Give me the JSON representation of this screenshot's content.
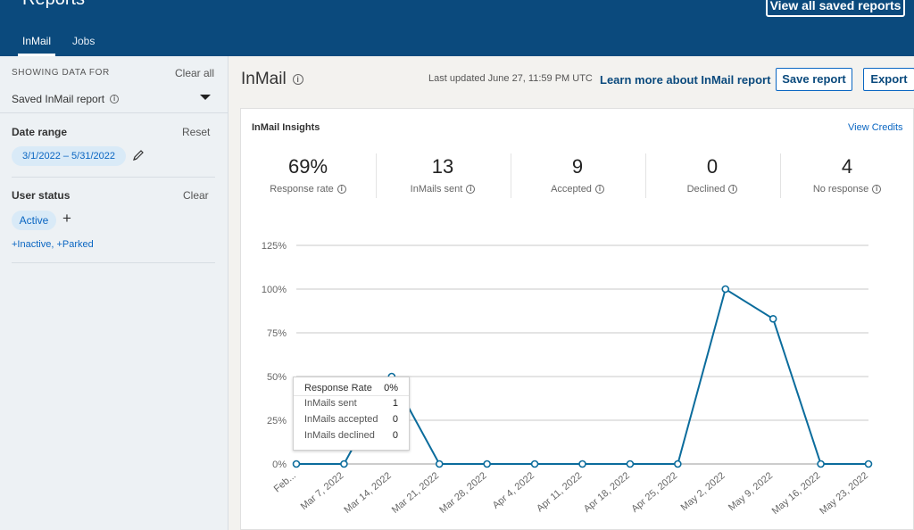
{
  "app": {
    "title": "Reports",
    "view_saved_label": "View all saved reports",
    "tabs": [
      {
        "label": "InMail",
        "active": true
      },
      {
        "label": "Jobs",
        "active": false
      }
    ]
  },
  "sidebar": {
    "section_title": "SHOWING DATA FOR",
    "clear_all": "Clear all",
    "saved_report_label": "Saved InMail report",
    "date_range_label": "Date range",
    "reset_label": "Reset",
    "date_range_value": "3/1/2022 – 5/31/2022",
    "user_status_label": "User status",
    "clear_label": "Clear",
    "active_chip": "Active",
    "add_status": "+",
    "more_status": "+Inactive, +Parked"
  },
  "header": {
    "title": "InMail",
    "updated": "Last updated June 27, 11:59 PM UTC",
    "learn_more": "Learn more about InMail report",
    "save_report": "Save report",
    "export": "Export"
  },
  "insights": {
    "title": "InMail Insights",
    "view_credits": "View Credits",
    "stats": [
      {
        "value": "69%",
        "label": "Response rate"
      },
      {
        "value": "13",
        "label": "InMails sent"
      },
      {
        "value": "9",
        "label": "Accepted"
      },
      {
        "value": "0",
        "label": "Declined"
      },
      {
        "value": "4",
        "label": "No response"
      }
    ]
  },
  "tooltip": {
    "rows": [
      {
        "label": "Response Rate",
        "value": "0%"
      },
      {
        "label": "InMails sent",
        "value": "1"
      },
      {
        "label": "InMails accepted",
        "value": "0"
      },
      {
        "label": "InMails declined",
        "value": "0"
      }
    ]
  },
  "chart_data": {
    "type": "line",
    "x": [
      "Feb...",
      "Mar 7, 2022",
      "Mar 14, 2022",
      "Mar 21, 2022",
      "Mar 28, 2022",
      "Apr 4, 2022",
      "Apr 11, 2022",
      "Apr 18, 2022",
      "Apr 25, 2022",
      "May 2, 2022",
      "May 9, 2022",
      "May 16, 2022",
      "May 23, 2022"
    ],
    "series": [
      {
        "values": [
          0,
          0,
          50,
          0,
          0,
          0,
          0,
          0,
          0,
          100,
          83,
          0,
          0
        ]
      }
    ],
    "yticks": [
      "0%",
      "25%",
      "50%",
      "75%",
      "100%",
      "125%"
    ],
    "ylim": [
      0,
      125
    ],
    "grid": true,
    "colors": {
      "line": "#0b6c9c",
      "grid": "#c8c8c8"
    }
  },
  "colors": {
    "brand": "#0b4a7d",
    "link": "#0a66c2",
    "pill": "#d9eaf7"
  }
}
